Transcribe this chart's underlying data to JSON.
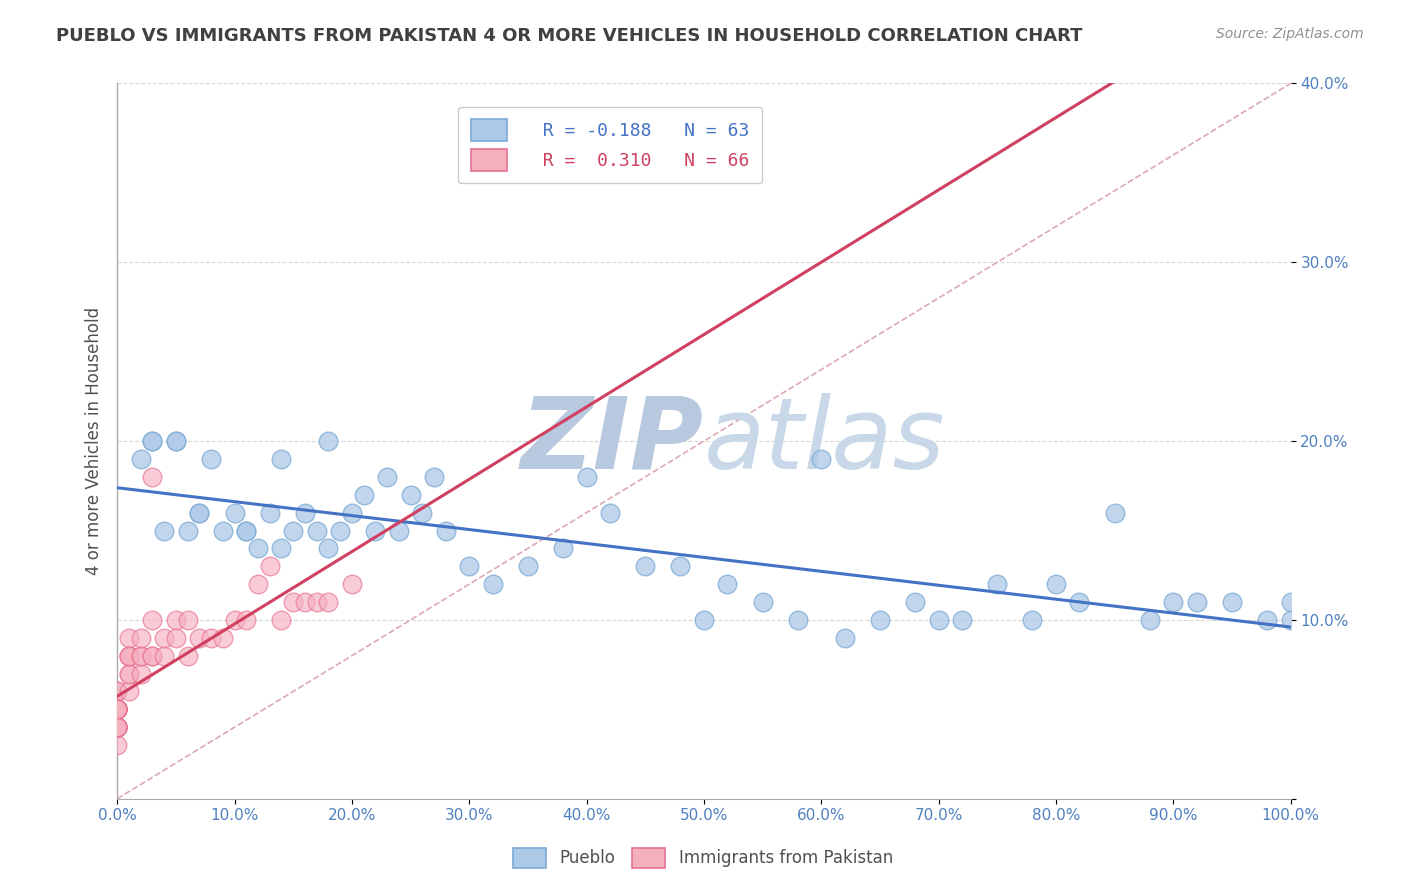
{
  "title": "PUEBLO VS IMMIGRANTS FROM PAKISTAN 4 OR MORE VEHICLES IN HOUSEHOLD CORRELATION CHART",
  "source_text": "Source: ZipAtlas.com",
  "ylabel": "4 or more Vehicles in Household",
  "xlabel": "",
  "xlim": [
    0,
    100
  ],
  "ylim": [
    0,
    40
  ],
  "legend_r1": "R = -0.188",
  "legend_n1": "N = 63",
  "legend_r2": "R =  0.310",
  "legend_n2": "N = 66",
  "pueblo_color": "#adc9e8",
  "pakistan_color": "#f5b0c0",
  "pueblo_edge_color": "#7aaad4",
  "pakistan_edge_color": "#e87090",
  "pueblo_line_color": "#4472c4",
  "pakistan_line_color": "#d04060",
  "ref_line_color": "#d8a0a8",
  "watermark_color": "#cdd9ea",
  "title_color": "#404040",
  "background_color": "#ffffff",
  "grid_color": "#d8d8d8",
  "tick_color": "#5080c0",
  "pueblo_scatter_x": [
    2,
    3,
    4,
    5,
    6,
    7,
    8,
    10,
    11,
    12,
    13,
    14,
    15,
    16,
    17,
    18,
    19,
    20,
    21,
    22,
    23,
    24,
    25,
    26,
    27,
    28,
    30,
    32,
    35,
    38,
    40,
    42,
    45,
    48,
    50,
    52,
    55,
    58,
    60,
    62,
    65,
    68,
    70,
    72,
    75,
    78,
    80,
    82,
    85,
    88,
    90,
    92,
    95,
    98,
    100,
    100,
    3,
    5,
    7,
    9,
    11,
    14,
    18
  ],
  "pueblo_scatter_y": [
    19,
    20,
    15,
    20,
    15,
    16,
    19,
    16,
    15,
    14,
    16,
    14,
    15,
    16,
    15,
    14,
    15,
    16,
    17,
    15,
    18,
    15,
    17,
    16,
    18,
    15,
    13,
    12,
    13,
    14,
    18,
    16,
    13,
    13,
    10,
    12,
    11,
    10,
    19,
    9,
    10,
    11,
    10,
    10,
    12,
    10,
    12,
    11,
    16,
    10,
    11,
    11,
    11,
    10,
    11,
    10,
    20,
    20,
    16,
    15,
    15,
    19,
    20
  ],
  "pakistan_scatter_x": [
    0,
    0,
    0,
    0,
    0,
    0,
    0,
    0,
    0,
    0,
    0,
    0,
    0,
    0,
    0,
    0,
    0,
    0,
    0,
    0,
    0,
    0,
    0,
    0,
    0,
    0,
    0,
    0,
    0,
    0,
    0,
    0,
    1,
    1,
    1,
    1,
    1,
    1,
    1,
    2,
    2,
    2,
    2,
    3,
    3,
    3,
    3,
    4,
    4,
    5,
    5,
    6,
    6,
    7,
    8,
    9,
    10,
    11,
    12,
    13,
    14,
    15,
    16,
    17,
    18,
    20
  ],
  "pakistan_scatter_y": [
    5,
    4,
    5,
    6,
    4,
    5,
    4,
    5,
    5,
    3,
    5,
    5,
    4,
    4,
    4,
    5,
    5,
    5,
    4,
    5,
    6,
    5,
    4,
    5,
    4,
    5,
    5,
    4,
    5,
    5,
    4,
    5,
    8,
    7,
    8,
    9,
    6,
    7,
    8,
    8,
    7,
    8,
    9,
    8,
    10,
    18,
    8,
    8,
    9,
    10,
    9,
    8,
    10,
    9,
    9,
    9,
    10,
    10,
    12,
    13,
    10,
    11,
    11,
    11,
    11,
    12
  ]
}
